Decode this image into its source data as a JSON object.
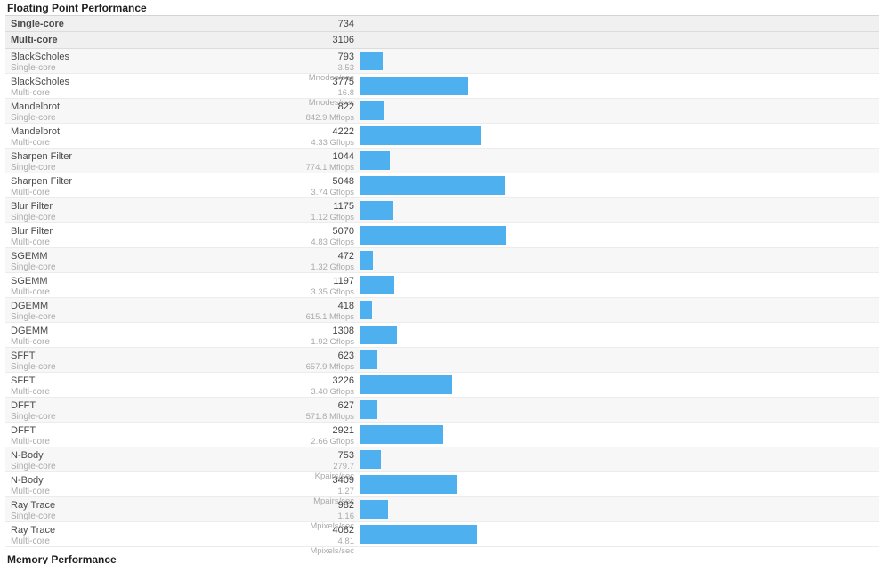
{
  "section": {
    "title": "Floating Point Performance"
  },
  "summary": [
    {
      "label": "Single-core",
      "score": "734"
    },
    {
      "label": "Multi-core",
      "score": "3106"
    }
  ],
  "rows": [
    {
      "name": "BlackScholes",
      "mode": "Single-core",
      "score": 793,
      "rate": "3.53 Mnodes/sec"
    },
    {
      "name": "BlackScholes",
      "mode": "Multi-core",
      "score": 3775,
      "rate": "16.8 Mnodes/sec"
    },
    {
      "name": "Mandelbrot",
      "mode": "Single-core",
      "score": 822,
      "rate": "842.9 Mflops"
    },
    {
      "name": "Mandelbrot",
      "mode": "Multi-core",
      "score": 4222,
      "rate": "4.33 Gflops"
    },
    {
      "name": "Sharpen Filter",
      "mode": "Single-core",
      "score": 1044,
      "rate": "774.1 Mflops"
    },
    {
      "name": "Sharpen Filter",
      "mode": "Multi-core",
      "score": 5048,
      "rate": "3.74 Gflops"
    },
    {
      "name": "Blur Filter",
      "mode": "Single-core",
      "score": 1175,
      "rate": "1.12 Gflops"
    },
    {
      "name": "Blur Filter",
      "mode": "Multi-core",
      "score": 5070,
      "rate": "4.83 Gflops"
    },
    {
      "name": "SGEMM",
      "mode": "Single-core",
      "score": 472,
      "rate": "1.32 Gflops"
    },
    {
      "name": "SGEMM",
      "mode": "Multi-core",
      "score": 1197,
      "rate": "3.35 Gflops"
    },
    {
      "name": "DGEMM",
      "mode": "Single-core",
      "score": 418,
      "rate": "615.1 Mflops"
    },
    {
      "name": "DGEMM",
      "mode": "Multi-core",
      "score": 1308,
      "rate": "1.92 Gflops"
    },
    {
      "name": "SFFT",
      "mode": "Single-core",
      "score": 623,
      "rate": "657.9 Mflops"
    },
    {
      "name": "SFFT",
      "mode": "Multi-core",
      "score": 3226,
      "rate": "3.40 Gflops"
    },
    {
      "name": "DFFT",
      "mode": "Single-core",
      "score": 627,
      "rate": "571.8 Mflops"
    },
    {
      "name": "DFFT",
      "mode": "Multi-core",
      "score": 2921,
      "rate": "2.66 Gflops"
    },
    {
      "name": "N-Body",
      "mode": "Single-core",
      "score": 753,
      "rate": "279.7 Kpairs/sec"
    },
    {
      "name": "N-Body",
      "mode": "Multi-core",
      "score": 3409,
      "rate": "1.27 Mpairs/sec"
    },
    {
      "name": "Ray Trace",
      "mode": "Single-core",
      "score": 982,
      "rate": "1.16 Mpixels/sec"
    },
    {
      "name": "Ray Trace",
      "mode": "Multi-core",
      "score": 4082,
      "rate": "4.81 Mpixels/sec"
    }
  ],
  "next_section": {
    "title": "Memory Performance"
  },
  "colors": {
    "bar": "#4fb0f0",
    "summary_bg": "#f0f0f0",
    "shade_bg": "#f7f7f7"
  },
  "chart_data": {
    "type": "bar",
    "orientation": "horizontal",
    "title": "Floating Point Performance",
    "summary_scores": {
      "Single-core": 734,
      "Multi-core": 3106
    },
    "categories": [
      "BlackScholes Single-core",
      "BlackScholes Multi-core",
      "Mandelbrot Single-core",
      "Mandelbrot Multi-core",
      "Sharpen Filter Single-core",
      "Sharpen Filter Multi-core",
      "Blur Filter Single-core",
      "Blur Filter Multi-core",
      "SGEMM Single-core",
      "SGEMM Multi-core",
      "DGEMM Single-core",
      "DGEMM Multi-core",
      "SFFT Single-core",
      "SFFT Multi-core",
      "DFFT Single-core",
      "DFFT Multi-core",
      "N-Body Single-core",
      "N-Body Multi-core",
      "Ray Trace Single-core",
      "Ray Trace Multi-core"
    ],
    "values": [
      793,
      3775,
      822,
      4222,
      1044,
      5048,
      1175,
      5070,
      472,
      1197,
      418,
      1308,
      623,
      3226,
      627,
      2921,
      753,
      3409,
      982,
      4082
    ],
    "value_labels": [
      "3.53 Mnodes/sec",
      "16.8 Mnodes/sec",
      "842.9 Mflops",
      "4.33 Gflops",
      "774.1 Mflops",
      "3.74 Gflops",
      "1.12 Gflops",
      "4.83 Gflops",
      "1.32 Gflops",
      "3.35 Gflops",
      "615.1 Mflops",
      "1.92 Gflops",
      "657.9 Mflops",
      "3.40 Gflops",
      "571.8 Mflops",
      "2.66 Gflops",
      "279.7 Kpairs/sec",
      "1.27 Mpairs/sec",
      "1.16 Mpixels/sec",
      "4.81 Mpixels/sec"
    ],
    "xlim": [
      0,
      5070
    ],
    "grid": false,
    "legend": false
  }
}
